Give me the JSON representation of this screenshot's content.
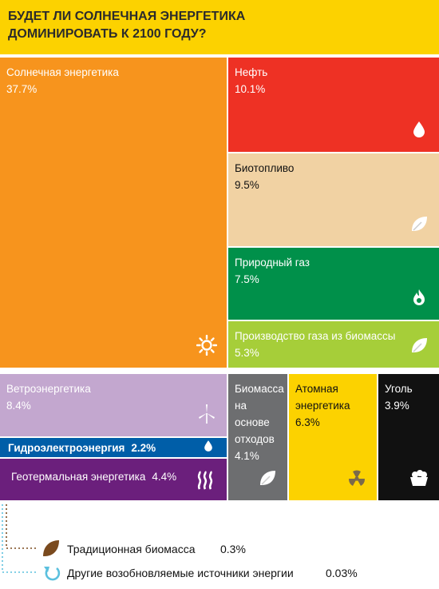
{
  "title": "БУДЕТ ЛИ СОЛНЕЧНАЯ ЭНЕРГЕТИКА ДОМИНИРОВАТЬ К 2100 ГОДУ?",
  "chart_data": {
    "type": "treemap",
    "unit": "%",
    "items": [
      {
        "name": "Солнечная энергетика",
        "value": "37.7%",
        "color": "#f7941d",
        "icon": "sun-icon"
      },
      {
        "name": "Нефть",
        "value": "10.1%",
        "color": "#ee3124",
        "icon": "oil-drop-icon"
      },
      {
        "name": "Биотопливо",
        "value": "9.5%",
        "color": "#f1d2a3",
        "icon": "leaf-icon"
      },
      {
        "name": "Природный газ",
        "value": "7.5%",
        "color": "#00904a",
        "icon": "flame-icon"
      },
      {
        "name": "Производство газа из биомассы",
        "value": "5.3%",
        "color": "#a6ce39",
        "icon": "leaf-icon"
      },
      {
        "name": "Ветроэнергетика",
        "value": "8.4%",
        "color": "#c3a7cf",
        "icon": "wind-turbine-icon"
      },
      {
        "name": "Гидроэлектроэнергия",
        "value": "2.2%",
        "color": "#005ea8",
        "icon": "water-drop-icon"
      },
      {
        "name": "Геотермальная энергетика",
        "value": "4.4%",
        "color": "#6b1f7c",
        "icon": "heat-icon"
      },
      {
        "name": "Биомасса на основе отходов",
        "value": "4.1%",
        "color": "#6d6e70",
        "icon": "leaf-icon"
      },
      {
        "name": "Атомная энергетика",
        "value": "6.3%",
        "color": "#fcd200",
        "icon": "radiation-icon"
      },
      {
        "name": "Уголь",
        "value": "3.9%",
        "color": "#111111",
        "icon": "coal-cart-icon"
      }
    ],
    "legend": [
      {
        "name": "Традиционная биомасса",
        "value": "0.3%",
        "color": "#7a4a1e",
        "icon": "leaf-icon"
      },
      {
        "name": "Другие возобновляемые источники энергии",
        "value": "0.03%",
        "color": "#5bc0de",
        "icon": "recycle-icon"
      }
    ]
  }
}
